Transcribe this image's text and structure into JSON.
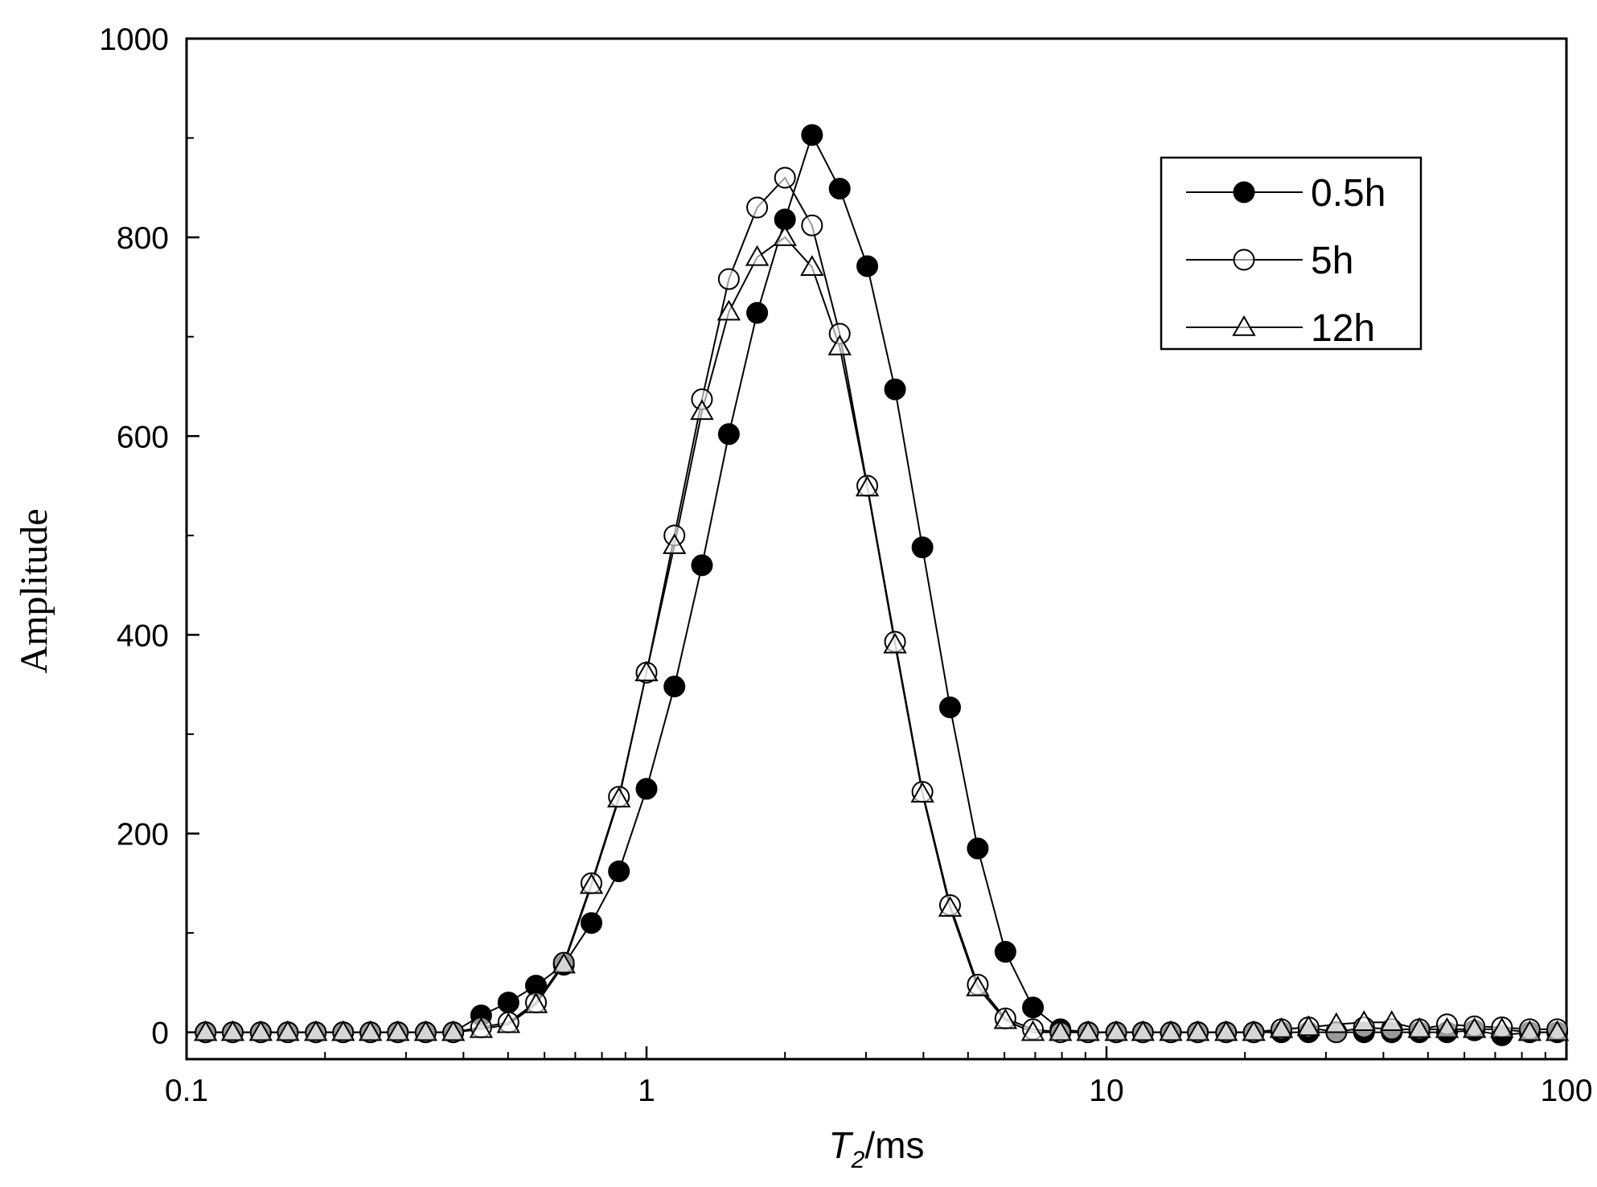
{
  "chart_data": {
    "type": "line",
    "xlabel": [
      "T",
      "2",
      "/ms"
    ],
    "ylabel": "Amplitude",
    "xscale": "log",
    "xlim": [
      0.1,
      100
    ],
    "xticks": [
      0.1,
      1,
      10,
      100
    ],
    "ylim": [
      -27,
      1000
    ],
    "yticks": [
      0,
      200,
      400,
      600,
      800,
      1000
    ],
    "legend": "upper right",
    "x": [
      0.11,
      0.126,
      0.145,
      0.166,
      0.191,
      0.219,
      0.251,
      0.288,
      0.331,
      0.38,
      0.437,
      0.501,
      0.575,
      0.661,
      0.759,
      0.871,
      1.0,
      1.15,
      1.32,
      1.51,
      1.74,
      2.0,
      2.29,
      2.63,
      3.02,
      3.47,
      3.98,
      4.57,
      5.25,
      6.03,
      6.92,
      7.94,
      9.12,
      10.5,
      12.0,
      13.8,
      15.8,
      18.2,
      20.9,
      24.0,
      27.5,
      31.6,
      36.3,
      41.7,
      47.9,
      55.0,
      63.1,
      72.4,
      83.2,
      95.5
    ],
    "series": [
      {
        "name": "0.5h",
        "color": "#000000",
        "marker": "circle-filled",
        "values": [
          0,
          0,
          0,
          0,
          0,
          0,
          0,
          0,
          0,
          0,
          17,
          30,
          47,
          68,
          110,
          162,
          245,
          348,
          470,
          602,
          724,
          818,
          903,
          849,
          771,
          647,
          488,
          327,
          185,
          81,
          25,
          3,
          0,
          0,
          0,
          0,
          0,
          0,
          0,
          0,
          0,
          0,
          0,
          0,
          0,
          0,
          2,
          -3,
          0,
          0
        ]
      },
      {
        "name": "5h",
        "color": "#000000",
        "marker": "circle-open",
        "values": [
          0,
          0,
          0,
          0,
          0,
          0,
          0,
          0,
          0,
          0,
          5,
          10,
          30,
          70,
          150,
          237,
          362,
          500,
          637,
          758,
          830,
          860,
          812,
          703,
          550,
          393,
          242,
          128,
          48,
          14,
          3,
          0,
          0,
          0,
          0,
          0,
          0,
          0,
          0,
          3,
          5,
          0,
          5,
          3,
          3,
          8,
          6,
          5,
          3,
          3
        ]
      },
      {
        "name": "12h",
        "color": "#000000",
        "marker": "triangle-open",
        "values": [
          0,
          0,
          0,
          0,
          0,
          0,
          0,
          0,
          0,
          0,
          3,
          8,
          28,
          68,
          148,
          235,
          362,
          490,
          625,
          725,
          780,
          800,
          770,
          690,
          548,
          390,
          240,
          125,
          45,
          12,
          0,
          0,
          0,
          0,
          0,
          0,
          0,
          0,
          0,
          3,
          5,
          8,
          10,
          10,
          3,
          3,
          3,
          3,
          0,
          0
        ]
      }
    ]
  }
}
